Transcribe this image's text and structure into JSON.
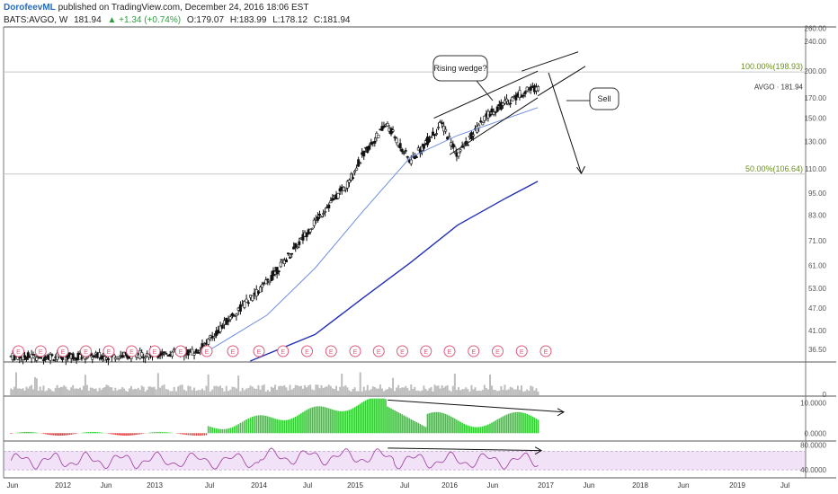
{
  "header": {
    "author": "DorofeevML",
    "published": " published on TradingView.com, December 24, 2016 18:06 EST",
    "symbol": "BATS:AVGO, W",
    "last": "181.94",
    "change": "▲ +1.34 (+0.74%)",
    "open": "O:179.07",
    "high": "H:183.99",
    "low": "L:178.12",
    "close": "C:181.94"
  },
  "colors": {
    "candle": "#111111",
    "ma_fast": "#6f8fe0",
    "ma_slow": "#2230b8",
    "macd_hist": "#35c935",
    "rsi_line": "#9a3a9a",
    "rsi_band": "#f2e2f8",
    "earnings": "#e05a7a",
    "volume": "#bdbdbd"
  },
  "annotations": {
    "wedge_callout": "Rising wedge?",
    "sell_callout": "Sell",
    "fib_100": "100.00%(198.93)",
    "fib_50": "50.00%(106.64)",
    "price_tag": "AVGO · 181.94",
    "earnings_label": "E"
  },
  "chart_data": [
    {
      "type": "candlestick",
      "title": "",
      "symbol": "AVGO",
      "y_scale": "log",
      "ylim": [
        34,
        262
      ],
      "y_ticks": [
        "260.00",
        "240.00",
        "200.00",
        "170.00",
        "150.00",
        "130.00",
        "110.00",
        "95.00",
        "83.00",
        "71.00",
        "61.00",
        "53.00",
        "47.00",
        "41.00",
        "36.50"
      ],
      "x_ticks": [
        "Jun",
        "2012",
        "Jun",
        "2013",
        "Jul",
        "2014",
        "Jul",
        "2015",
        "Jul",
        "2016",
        "Jun",
        "2017",
        "Jun",
        "2018",
        "Jun",
        "2019",
        "Jul"
      ],
      "x_range": [
        "2011-05",
        "2019-10"
      ],
      "price_keypoints": [
        [
          "2011-06",
          35
        ],
        [
          "2012-06",
          35
        ],
        [
          "2013-06",
          36
        ],
        [
          "2013-10",
          45
        ],
        [
          "2014-02",
          55
        ],
        [
          "2014-06",
          70
        ],
        [
          "2014-09",
          85
        ],
        [
          "2014-12",
          100
        ],
        [
          "2015-02",
          120
        ],
        [
          "2015-05",
          145
        ],
        [
          "2015-08",
          115
        ],
        [
          "2015-12",
          145
        ],
        [
          "2016-02",
          120
        ],
        [
          "2016-06",
          155
        ],
        [
          "2016-10",
          175
        ],
        [
          "2016-12",
          182
        ]
      ],
      "moving_averages": [
        {
          "color": "#6f8fe0",
          "points": [
            [
              "2013-07",
              36
            ],
            [
              "2014-02",
              45
            ],
            [
              "2014-08",
              60
            ],
            [
              "2015-02",
              85
            ],
            [
              "2015-08",
              118
            ],
            [
              "2016-02",
              135
            ],
            [
              "2016-12",
              160
            ]
          ]
        },
        {
          "color": "#2230b8",
          "points": [
            [
              "2013-12",
              34
            ],
            [
              "2014-08",
              40
            ],
            [
              "2015-02",
              50
            ],
            [
              "2015-08",
              62
            ],
            [
              "2016-02",
              78
            ],
            [
              "2016-08",
              92
            ],
            [
              "2016-12",
              102
            ]
          ]
        }
      ],
      "fib_levels": [
        {
          "label": "100.00%(198.93)",
          "value": 198.93
        },
        {
          "label": "50.00%(106.64)",
          "value": 106.64
        }
      ],
      "wedge_upper": [
        [
          "2015-11",
          150
        ],
        [
          "2016-12",
          200
        ]
      ],
      "wedge_lower": [
        [
          "2016-01",
          120
        ],
        [
          "2016-12",
          170
        ]
      ],
      "projection": [
        [
          "2016-12",
          198
        ],
        [
          "2017-03",
          107
        ]
      ],
      "last_price": 181.94
    },
    {
      "type": "bar",
      "name": "",
      "ylim": [
        0,
        1
      ],
      "y_ticks": [
        "0"
      ]
    },
    {
      "type": "bar",
      "name": "",
      "ylim": [
        -2,
        12
      ],
      "y_ticks": [
        "10.0000",
        "0.0000"
      ],
      "divergence": [
        [
          "2015-04",
          11
        ],
        [
          "2017-01",
          7
        ]
      ]
    },
    {
      "type": "line",
      "name": "",
      "ylim": [
        30,
        85
      ],
      "y_ticks": [
        "80.0000",
        "40.0000"
      ],
      "band": [
        40,
        70
      ],
      "divergence": [
        [
          "2015-04",
          75
        ],
        [
          "2016-12",
          71
        ]
      ]
    }
  ]
}
